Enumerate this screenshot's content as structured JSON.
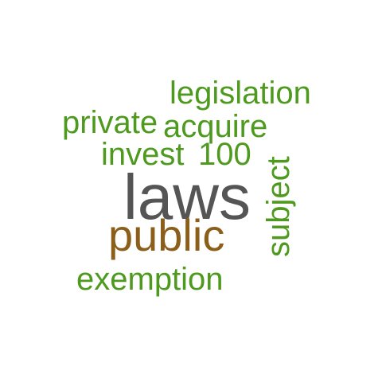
{
  "words": [
    {
      "text": "laws",
      "weight": 5,
      "color": "#555555",
      "rotated": false
    },
    {
      "text": "public",
      "weight": 3,
      "color": "#8B5E1A",
      "rotated": false
    },
    {
      "text": "legislation",
      "weight": 1,
      "color": "#4E9A1E",
      "rotated": false
    },
    {
      "text": "private",
      "weight": 1,
      "color": "#4E9A1E",
      "rotated": false
    },
    {
      "text": "acquire",
      "weight": 1,
      "color": "#4E9A1E",
      "rotated": false
    },
    {
      "text": "invest",
      "weight": 1,
      "color": "#4E9A1E",
      "rotated": false
    },
    {
      "text": "100",
      "weight": 1,
      "color": "#4E9A1E",
      "rotated": false
    },
    {
      "text": "subject",
      "weight": 1,
      "color": "#4E9A1E",
      "rotated": true
    },
    {
      "text": "exemption",
      "weight": 1,
      "color": "#4E9A1E",
      "rotated": false
    }
  ]
}
